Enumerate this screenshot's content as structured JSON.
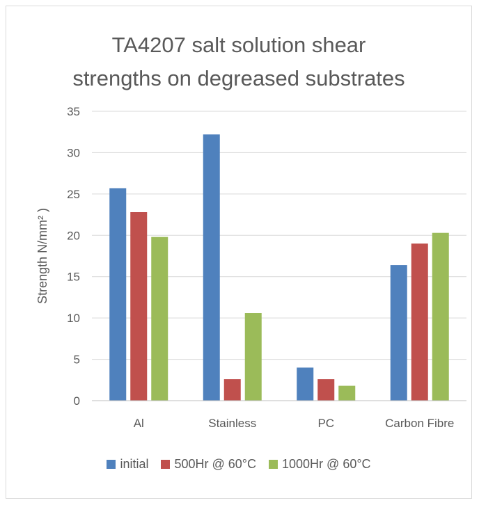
{
  "chart_data": {
    "type": "bar",
    "title_lines": [
      "TA4207 salt solution shear",
      "strengths on degreased substrates"
    ],
    "ylabel": "Strength N/mm² )",
    "xlabel": "",
    "categories": [
      "Al",
      "Stainless",
      "PC",
      "Carbon Fibre"
    ],
    "ylim": [
      0,
      35
    ],
    "yticks": [
      0,
      5,
      10,
      15,
      20,
      25,
      30,
      35
    ],
    "grid": true,
    "legend_position": "bottom",
    "series": [
      {
        "name": "initial",
        "color": "#4f81bd",
        "values": [
          25.7,
          32.2,
          4.0,
          16.4
        ]
      },
      {
        "name": "500Hr @ 60°C",
        "color": "#c0504d",
        "values": [
          22.8,
          2.6,
          2.6,
          19.0
        ]
      },
      {
        "name": "1000Hr @ 60°C",
        "color": "#9bbb59",
        "values": [
          19.8,
          10.6,
          1.8,
          20.3
        ]
      }
    ]
  }
}
